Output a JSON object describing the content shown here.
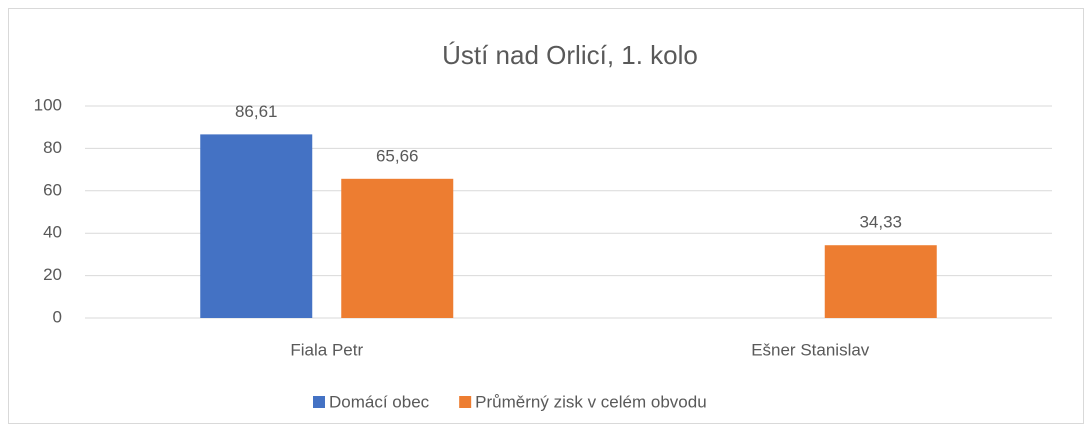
{
  "chart_data": {
    "type": "bar",
    "title": "Ústí nad Orlicí, 1. kolo",
    "categories": [
      "Fiala Petr",
      "Ešner Stanislav"
    ],
    "series": [
      {
        "name": "Domácí obec",
        "color": "#4472c4",
        "values": [
          86.61,
          null
        ],
        "value_labels": [
          "86,61",
          null
        ]
      },
      {
        "name": "Průměrný zisk v celém obvodu",
        "color": "#ed7d31",
        "values": [
          65.66,
          34.33
        ],
        "value_labels": [
          "65,66",
          "34,33"
        ]
      }
    ],
    "ylim": [
      0,
      100
    ],
    "yticks": [
      0,
      20,
      40,
      60,
      80,
      100
    ],
    "grid": true,
    "legend": "bottom"
  }
}
